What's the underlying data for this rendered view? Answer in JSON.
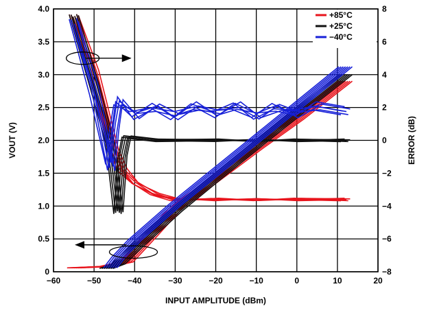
{
  "chart_data": {
    "type": "line",
    "title": "",
    "xlabel": "INPUT AMPLITUDE (dBm)",
    "ylabel": "VOUT (V)",
    "y2label": "ERROR (dB)",
    "xlim": [
      -60,
      20
    ],
    "ylim": [
      0,
      4.0
    ],
    "y2lim": [
      -8,
      8
    ],
    "x_ticks": [
      -60,
      -50,
      -40,
      -30,
      -20,
      -10,
      0,
      10,
      20
    ],
    "x_tick_labels": [
      "−60",
      "−50",
      "−40",
      "−30",
      "−20",
      "−10",
      "0",
      "10",
      "20"
    ],
    "y_ticks": [
      0,
      0.5,
      1.0,
      1.5,
      2.0,
      2.5,
      3.0,
      3.5,
      4.0
    ],
    "y_tick_labels": [
      "0",
      "0.5",
      "1.0",
      "1.5",
      "2.0",
      "2.5",
      "3.0",
      "3.5",
      "4.0"
    ],
    "y2_ticks": [
      -8,
      -6,
      -4,
      -2,
      0,
      2,
      4,
      6,
      8
    ],
    "y2_tick_labels": [
      "−8",
      "−6",
      "−4",
      "−2",
      "0",
      "2",
      "4",
      "6",
      "8"
    ],
    "grid": true,
    "legend_position": "top-right",
    "series": [
      {
        "name": "+85°C",
        "color": "#e8141c",
        "vout": [
          [
            -55,
            0.06
          ],
          [
            -47,
            0.08
          ],
          [
            -42,
            0.15
          ],
          [
            -36,
            0.55
          ],
          [
            -30,
            0.96
          ],
          [
            -20,
            1.42
          ],
          [
            -10,
            1.88
          ],
          [
            0,
            2.32
          ],
          [
            12,
            2.9
          ]
        ],
        "error": [
          [
            -55,
            7.6
          ],
          [
            -50,
            4.2
          ],
          [
            -45,
            -0.6
          ],
          [
            -43,
            -1.8
          ],
          [
            -40,
            -2.6
          ],
          [
            -35,
            -3.3
          ],
          [
            -30,
            -3.6
          ],
          [
            -20,
            -3.6
          ],
          [
            -10,
            -3.6
          ],
          [
            0,
            -3.6
          ],
          [
            12,
            -3.6
          ]
        ]
      },
      {
        "name": "+25°C",
        "color": "#111111",
        "vout": [
          [
            -47,
            0.05
          ],
          [
            -44,
            0.12
          ],
          [
            -40,
            0.36
          ],
          [
            -30,
            0.92
          ],
          [
            -20,
            1.43
          ],
          [
            -10,
            1.93
          ],
          [
            0,
            2.42
          ],
          [
            12,
            3.0
          ]
        ],
        "error": [
          [
            -55,
            7.6
          ],
          [
            -50,
            3.4
          ],
          [
            -46,
            -0.2
          ],
          [
            -44,
            -4.4
          ],
          [
            -43,
            -1.0
          ],
          [
            -42,
            0.2
          ],
          [
            -35,
            0.0
          ],
          [
            -20,
            0.0
          ],
          [
            -10,
            0.0
          ],
          [
            0,
            0.0
          ],
          [
            12,
            0.0
          ]
        ]
      },
      {
        "name": "−40°C",
        "color": "#1720d8",
        "vout": [
          [
            -46,
            0.06
          ],
          [
            -44,
            0.22
          ],
          [
            -40,
            0.48
          ],
          [
            -30,
            1.02
          ],
          [
            -20,
            1.52
          ],
          [
            -10,
            2.02
          ],
          [
            0,
            2.52
          ],
          [
            12,
            3.12
          ]
        ],
        "error": [
          [
            -55,
            7.2
          ],
          [
            -50,
            3.0
          ],
          [
            -46,
            -1.6
          ],
          [
            -45,
            0.8
          ],
          [
            -44,
            2.4
          ],
          [
            -40,
            1.5
          ],
          [
            -35,
            2.0
          ],
          [
            -30,
            1.5
          ],
          [
            -25,
            2.1
          ],
          [
            -20,
            1.6
          ],
          [
            -15,
            2.1
          ],
          [
            -10,
            1.5
          ],
          [
            -5,
            2.0
          ],
          [
            0,
            1.6
          ],
          [
            5,
            2.1
          ],
          [
            12,
            1.8
          ]
        ]
      }
    ]
  }
}
